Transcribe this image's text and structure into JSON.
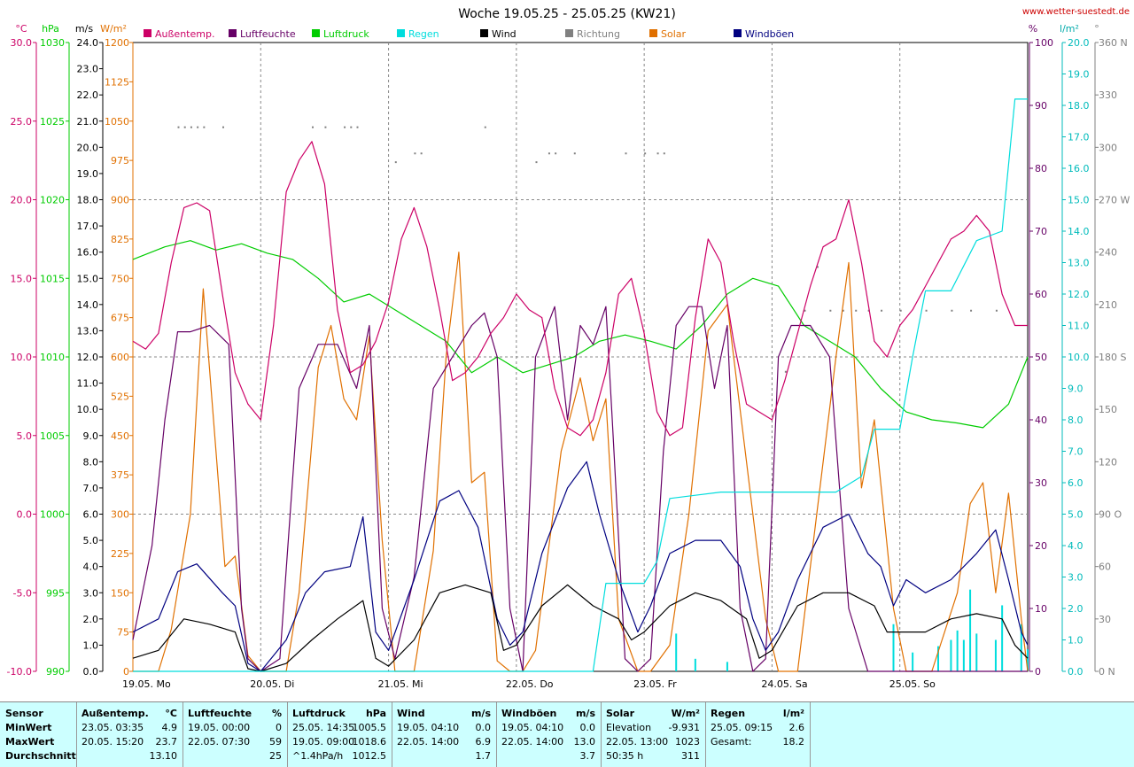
{
  "title": "Woche 19.05.25 - 25.05.25 (KW21)",
  "site": "www.wetter-suestedt.de",
  "units": {
    "temp": "°C",
    "pressure": "hPa",
    "wind": "m/s",
    "solar": "W/m²",
    "humidity": "%",
    "rain": "l/m²",
    "direction": "°"
  },
  "legend": [
    {
      "label": "Außentemp.",
      "color": "#cc0066"
    },
    {
      "label": "Luftfeuchte",
      "color": "#660066"
    },
    {
      "label": "Luftdruck",
      "color": "#00cc00"
    },
    {
      "label": "Regen",
      "color": "#00dddd"
    },
    {
      "label": "Wind",
      "color": "#000000"
    },
    {
      "label": "Richtung",
      "color": "#808080"
    },
    {
      "label": "Solar",
      "color": "#e07000"
    },
    {
      "label": "Windböen",
      "color": "#000080"
    }
  ],
  "axes": {
    "temp_ticks": [
      "30.0",
      "25.0",
      "20.0",
      "15.0",
      "10.0",
      "5.0",
      "0.0",
      "-5.0",
      "-10.0"
    ],
    "pressure_ticks": [
      "1030",
      "1025",
      "1020",
      "1015",
      "1010",
      "1005",
      "1000",
      "995",
      "990"
    ],
    "wind_ticks": [
      "24.0",
      "23.0",
      "22.0",
      "21.0",
      "20.0",
      "19.0",
      "18.0",
      "17.0",
      "16.0",
      "15.0",
      "14.0",
      "13.0",
      "12.0",
      "11.0",
      "10.0",
      "9.0",
      "8.0",
      "7.0",
      "6.0",
      "5.0",
      "4.0",
      "3.0",
      "2.0",
      "1.0",
      "0.0"
    ],
    "solar_ticks": [
      "1200",
      "1125",
      "1050",
      "975",
      "900",
      "825",
      "750",
      "675",
      "600",
      "525",
      "450",
      "375",
      "300",
      "225",
      "150",
      "75",
      "0"
    ],
    "humidity_ticks": [
      "100",
      "90",
      "80",
      "70",
      "60",
      "50",
      "40",
      "30",
      "20",
      "10",
      "0"
    ],
    "rain_ticks": [
      "20.0",
      "19.0",
      "18.0",
      "17.0",
      "16.0",
      "15.0",
      "14.0",
      "13.0",
      "12.0",
      "11.0",
      "10.0",
      "9.0",
      "8.0",
      "7.0",
      "6.0",
      "5.0",
      "4.0",
      "3.0",
      "2.0",
      "1.0",
      "0.0"
    ],
    "dir_ticks": [
      "360 N",
      "330",
      "300",
      "270 W",
      "240",
      "210",
      "180 S",
      "150",
      "120",
      "90 O",
      "60",
      "30",
      "0 N"
    ],
    "day_labels": [
      "19.05.  Mo",
      "20.05.  Di",
      "21.05.  Mi",
      "22.05.  Do",
      "23.05.  Fr",
      "24.05.  Sa",
      "25.05.  So"
    ]
  },
  "chart_data": {
    "type": "line",
    "x_unit": "day (0 = 19.05. 00:00)",
    "x_range": [
      0,
      7
    ],
    "series": [
      {
        "name": "Außentemp.",
        "unit": "°C",
        "color": "#cc0066",
        "x": [
          0,
          0.1,
          0.2,
          0.3,
          0.4,
          0.5,
          0.6,
          0.7,
          0.8,
          0.9,
          1.0,
          1.1,
          1.2,
          1.3,
          1.4,
          1.5,
          1.6,
          1.7,
          1.8,
          1.9,
          2.0,
          2.1,
          2.2,
          2.3,
          2.4,
          2.5,
          2.6,
          2.7,
          2.8,
          2.9,
          3.0,
          3.1,
          3.2,
          3.3,
          3.4,
          3.5,
          3.6,
          3.7,
          3.8,
          3.9,
          4.0,
          4.1,
          4.2,
          4.3,
          4.4,
          4.5,
          4.6,
          4.7,
          4.8,
          4.9,
          5.0,
          5.1,
          5.2,
          5.3,
          5.4,
          5.5,
          5.6,
          5.7,
          5.8,
          5.9,
          6.0,
          6.1,
          6.2,
          6.3,
          6.4,
          6.5,
          6.6,
          6.7,
          6.8,
          6.9,
          7.0
        ],
        "values": [
          11.0,
          10.5,
          11.5,
          16.0,
          19.5,
          19.8,
          19.3,
          14.0,
          9.0,
          7.0,
          6.0,
          12.0,
          20.5,
          22.5,
          23.7,
          21.0,
          13.0,
          9.0,
          9.5,
          11.0,
          13.5,
          17.5,
          19.5,
          17.0,
          13.0,
          8.5,
          9.0,
          10.0,
          11.5,
          12.5,
          14.0,
          13.0,
          12.5,
          8.0,
          5.5,
          5.0,
          6.0,
          9.0,
          14.0,
          15.0,
          11.5,
          6.5,
          5.0,
          5.5,
          12.5,
          17.5,
          16.0,
          11.0,
          7.0,
          6.5,
          6.0,
          8.5,
          11.5,
          14.5,
          17.0,
          17.5,
          20.0,
          16.0,
          11.0,
          10.0,
          12.0,
          13.0,
          14.5,
          16.0,
          17.5,
          18.0,
          19.0,
          18.0,
          14.0,
          12.0,
          12.0
        ]
      },
      {
        "name": "Luftfeuchte",
        "unit": "%",
        "color": "#660066",
        "x": [
          0,
          0.15,
          0.25,
          0.35,
          0.45,
          0.6,
          0.75,
          0.85,
          0.9,
          1.0,
          1.15,
          1.3,
          1.45,
          1.6,
          1.75,
          1.85,
          1.95,
          2.05,
          2.2,
          2.35,
          2.5,
          2.65,
          2.75,
          2.85,
          2.95,
          3.05,
          3.15,
          3.3,
          3.4,
          3.5,
          3.6,
          3.7,
          3.75,
          3.85,
          3.95,
          4.05,
          4.15,
          4.25,
          4.35,
          4.45,
          4.55,
          4.65,
          4.75,
          4.85,
          4.95,
          5.05,
          5.15,
          5.3,
          5.45,
          5.6,
          5.75,
          5.85,
          5.95,
          6.05,
          6.2,
          6.35,
          6.5,
          6.65,
          6.8,
          6.95,
          7.0
        ],
        "values": [
          5,
          20,
          40,
          54,
          54,
          55,
          52,
          10,
          2,
          0,
          2,
          45,
          52,
          52,
          45,
          55,
          10,
          2,
          15,
          45,
          50,
          55,
          57,
          50,
          10,
          0,
          50,
          58,
          40,
          55,
          52,
          58,
          40,
          2,
          0,
          2,
          35,
          55,
          58,
          58,
          45,
          55,
          10,
          0,
          2,
          50,
          55,
          55,
          50,
          10,
          0,
          0,
          0,
          0,
          0,
          0,
          0,
          0,
          0,
          0,
          0
        ]
      },
      {
        "name": "Luftdruck",
        "unit": "hPa",
        "color": "#00cc00",
        "x": [
          0,
          0.25,
          0.45,
          0.65,
          0.85,
          1.05,
          1.25,
          1.45,
          1.65,
          1.85,
          2.05,
          2.25,
          2.45,
          2.65,
          2.85,
          3.05,
          3.25,
          3.45,
          3.65,
          3.85,
          4.05,
          4.25,
          4.45,
          4.65,
          4.85,
          5.05,
          5.25,
          5.45,
          5.65,
          5.85,
          6.05,
          6.25,
          6.45,
          6.65,
          6.85,
          7.0
        ],
        "values": [
          1016.2,
          1017.0,
          1017.4,
          1016.8,
          1017.2,
          1016.6,
          1016.2,
          1015.0,
          1013.5,
          1014.0,
          1013.0,
          1012.0,
          1011.0,
          1009.0,
          1010.0,
          1009.0,
          1009.5,
          1010.0,
          1011.0,
          1011.4,
          1011.0,
          1010.5,
          1012.0,
          1014.0,
          1015.0,
          1014.5,
          1012.0,
          1011.0,
          1010.0,
          1008.0,
          1006.5,
          1006.0,
          1005.8,
          1005.5,
          1007.0,
          1010.0
        ]
      },
      {
        "name": "Regen",
        "unit": "l/m²",
        "color": "#00dddd",
        "x": [
          0,
          3.6,
          3.7,
          4.0,
          4.1,
          4.2,
          4.4,
          4.6,
          5.5,
          5.7,
          5.8,
          6.0,
          6.1,
          6.2,
          6.4,
          6.6,
          6.8,
          6.9,
          7.0
        ],
        "values": [
          0,
          0,
          2.8,
          2.8,
          3.5,
          5.5,
          5.6,
          5.7,
          5.7,
          6.2,
          7.7,
          7.7,
          10.0,
          12.1,
          12.1,
          13.7,
          14.0,
          18.2,
          18.2
        ]
      },
      {
        "name": "Wind",
        "unit": "m/s",
        "color": "#000000",
        "x": [
          0,
          0.2,
          0.4,
          0.6,
          0.8,
          0.9,
          1.0,
          1.2,
          1.4,
          1.6,
          1.8,
          1.9,
          2.0,
          2.2,
          2.4,
          2.6,
          2.8,
          2.9,
          3.0,
          3.2,
          3.4,
          3.6,
          3.8,
          3.9,
          4.0,
          4.2,
          4.4,
          4.6,
          4.8,
          4.9,
          5.0,
          5.2,
          5.4,
          5.6,
          5.8,
          5.9,
          6.0,
          6.2,
          6.4,
          6.6,
          6.8,
          6.9,
          7.0
        ],
        "values": [
          0.5,
          0.8,
          2.0,
          1.8,
          1.5,
          0.1,
          0.0,
          0.3,
          1.2,
          2.0,
          2.7,
          0.5,
          0.2,
          1.2,
          3.0,
          3.3,
          3.0,
          0.8,
          1.0,
          2.5,
          3.3,
          2.5,
          2.0,
          1.2,
          1.5,
          2.5,
          3.0,
          2.7,
          2.0,
          0.5,
          0.8,
          2.5,
          3.0,
          3.0,
          2.5,
          1.5,
          1.5,
          1.5,
          2.0,
          2.2,
          2.0,
          1.0,
          0.5
        ]
      },
      {
        "name": "Windböen",
        "unit": "m/s",
        "color": "#000080",
        "x": [
          0,
          0.2,
          0.35,
          0.5,
          0.7,
          0.8,
          0.9,
          1.0,
          1.2,
          1.35,
          1.5,
          1.7,
          1.8,
          1.9,
          2.0,
          2.2,
          2.4,
          2.55,
          2.7,
          2.85,
          2.95,
          3.05,
          3.2,
          3.4,
          3.55,
          3.65,
          3.8,
          3.95,
          4.05,
          4.2,
          4.4,
          4.6,
          4.75,
          4.85,
          4.95,
          5.05,
          5.2,
          5.4,
          5.6,
          5.75,
          5.85,
          5.95,
          6.05,
          6.2,
          6.4,
          6.6,
          6.75,
          6.85,
          6.95,
          7.0
        ],
        "values": [
          1.5,
          2.0,
          3.8,
          4.1,
          3.0,
          2.5,
          0.3,
          0.0,
          1.2,
          3.0,
          3.8,
          4.0,
          5.9,
          1.5,
          0.8,
          3.5,
          6.5,
          6.9,
          5.5,
          2.0,
          1.0,
          1.5,
          4.5,
          7.0,
          8.0,
          6.0,
          3.5,
          1.5,
          2.5,
          4.5,
          5.0,
          5.0,
          4.0,
          2.0,
          0.8,
          1.5,
          3.5,
          5.5,
          6.0,
          4.5,
          4.0,
          2.5,
          3.5,
          3.0,
          3.5,
          4.5,
          5.4,
          3.5,
          1.5,
          1.0
        ]
      },
      {
        "name": "Solar",
        "unit": "W/m²",
        "color": "#e07000",
        "x": [
          0,
          0.2,
          0.3,
          0.45,
          0.55,
          0.65,
          0.72,
          0.8,
          0.9,
          1.0,
          1.2,
          1.3,
          1.45,
          1.55,
          1.65,
          1.75,
          1.85,
          1.95,
          2.05,
          2.2,
          2.35,
          2.45,
          2.55,
          2.65,
          2.75,
          2.85,
          2.95,
          3.05,
          3.15,
          3.35,
          3.5,
          3.6,
          3.7,
          3.8,
          3.95,
          4.05,
          4.2,
          4.35,
          4.5,
          4.65,
          4.8,
          4.95,
          5.05,
          5.2,
          5.35,
          5.5,
          5.6,
          5.7,
          5.8,
          5.95,
          6.05,
          6.25,
          6.45,
          6.55,
          6.65,
          6.75,
          6.85,
          6.95,
          7.0
        ],
        "values": [
          0,
          0,
          80,
          300,
          730,
          420,
          200,
          220,
          30,
          0,
          0,
          150,
          580,
          660,
          520,
          480,
          640,
          250,
          0,
          0,
          230,
          600,
          800,
          360,
          380,
          20,
          0,
          0,
          40,
          420,
          560,
          440,
          520,
          100,
          0,
          0,
          50,
          300,
          650,
          700,
          400,
          100,
          0,
          0,
          300,
          600,
          780,
          350,
          480,
          120,
          0,
          0,
          150,
          320,
          360,
          150,
          340,
          100,
          0
        ]
      }
    ],
    "direction_dots": {
      "name": "Richtung",
      "unit": "°",
      "color": "#808080",
      "x": [
        0.35,
        0.4,
        0.45,
        0.5,
        0.55,
        0.7,
        1.4,
        1.5,
        1.65,
        1.7,
        1.75,
        2.05,
        2.2,
        2.25,
        2.75,
        3.15,
        3.25,
        3.3,
        3.45,
        3.85,
        4.0,
        4.1,
        4.15,
        5.1,
        5.25,
        5.35,
        5.45,
        5.55,
        5.65,
        5.75,
        5.85,
        6.0,
        6.2,
        6.4,
        6.55,
        6.75
      ],
      "values": [
        312,
        312,
        312,
        312,
        312,
        312,
        312,
        312,
        312,
        312,
        312,
        292,
        297,
        297,
        312,
        292,
        297,
        297,
        297,
        297,
        297,
        297,
        297,
        172,
        207,
        232,
        207,
        207,
        207,
        207,
        207,
        207,
        207,
        207,
        207,
        207
      ]
    },
    "rain_bars": {
      "name": "Regen (Intervall)",
      "unit": "l/m²",
      "x": [
        4.25,
        4.4,
        4.65,
        5.95,
        6.1,
        6.3,
        6.4,
        6.45,
        6.5,
        6.55,
        6.6,
        6.75,
        6.8,
        6.95,
        7.0
      ],
      "values": [
        1.2,
        0.4,
        0.3,
        1.5,
        0.6,
        0.8,
        1.0,
        1.3,
        1.0,
        2.6,
        1.2,
        1.0,
        2.1,
        1.5,
        0.7
      ]
    }
  },
  "stats": {
    "columns": [
      {
        "title": "Sensor",
        "unit": "",
        "rows": [
          [
            "MinWert",
            ""
          ],
          [
            "MaxWert",
            ""
          ],
          [
            "Durchschnitt",
            ""
          ]
        ]
      },
      {
        "title": "Außentemp.",
        "unit": "°C",
        "rows": [
          [
            "23.05.  03:35",
            "4.9"
          ],
          [
            "20.05.  15:20",
            "23.7"
          ],
          [
            "",
            "13.10"
          ]
        ]
      },
      {
        "title": "Luftfeuchte",
        "unit": "%",
        "rows": [
          [
            "19.05.  00:00",
            "0"
          ],
          [
            "22.05.  07:30",
            "59"
          ],
          [
            "",
            "25"
          ]
        ]
      },
      {
        "title": "Luftdruck",
        "unit": "hPa",
        "rows": [
          [
            "25.05.  14:35",
            "1005.5"
          ],
          [
            "19.05.  09:00",
            "1018.6"
          ],
          [
            "^1.4hPa/h",
            "1012.5"
          ]
        ]
      },
      {
        "title": "Wind",
        "unit": "m/s",
        "rows": [
          [
            "19.05.  04:10",
            "0.0"
          ],
          [
            "22.05.  14:00",
            "6.9"
          ],
          [
            "",
            "1.7"
          ]
        ]
      },
      {
        "title": "Windböen",
        "unit": "m/s",
        "rows": [
          [
            "19.05.  04:10",
            "0.0"
          ],
          [
            "22.05.  14:00",
            "13.0"
          ],
          [
            "",
            "3.7"
          ]
        ]
      },
      {
        "title": "Solar",
        "unit": "W/m²",
        "rows": [
          [
            "Elevation",
            "-9.931"
          ],
          [
            "22.05.  13:00",
            "1023"
          ],
          [
            "50:35 h",
            "311"
          ]
        ]
      },
      {
        "title": "Regen",
        "unit": "l/m²",
        "rows": [
          [
            "25.05.  09:15",
            "2.6"
          ],
          [
            "Gesamt:",
            "18.2"
          ],
          [
            "",
            ""
          ]
        ]
      }
    ]
  }
}
